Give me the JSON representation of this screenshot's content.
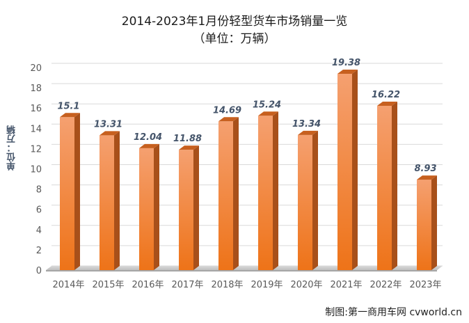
{
  "title": "2014-2023年1月份轻型货车市场销量一览",
  "subtitle": "（单位：万辆）",
  "watermark": "制图:第一商用车网 cvworld.cn",
  "chart_data": {
    "type": "bar",
    "categories": [
      "2014年",
      "2015年",
      "2016年",
      "2017年",
      "2018年",
      "2019年",
      "2020年",
      "2021年",
      "2022年",
      "2023年"
    ],
    "values": [
      15.1,
      13.31,
      12.04,
      11.88,
      14.69,
      15.24,
      13.34,
      19.38,
      16.22,
      8.93
    ],
    "value_labels": [
      "15.1",
      "13.31",
      "12.04",
      "11.88",
      "14.69",
      "15.24",
      "13.34",
      "19.38",
      "16.22",
      "8.93"
    ],
    "ylabel": "单位：万辆",
    "xlabel": "",
    "ylim": [
      0,
      20
    ],
    "yticks": [
      0,
      2,
      4,
      6,
      8,
      10,
      12,
      14,
      16,
      18,
      20
    ],
    "grid": true,
    "legend": "none",
    "bar_color": "#F07A22",
    "bar_side_color": "#A8501A",
    "bar_top_color": "#C7601F"
  }
}
